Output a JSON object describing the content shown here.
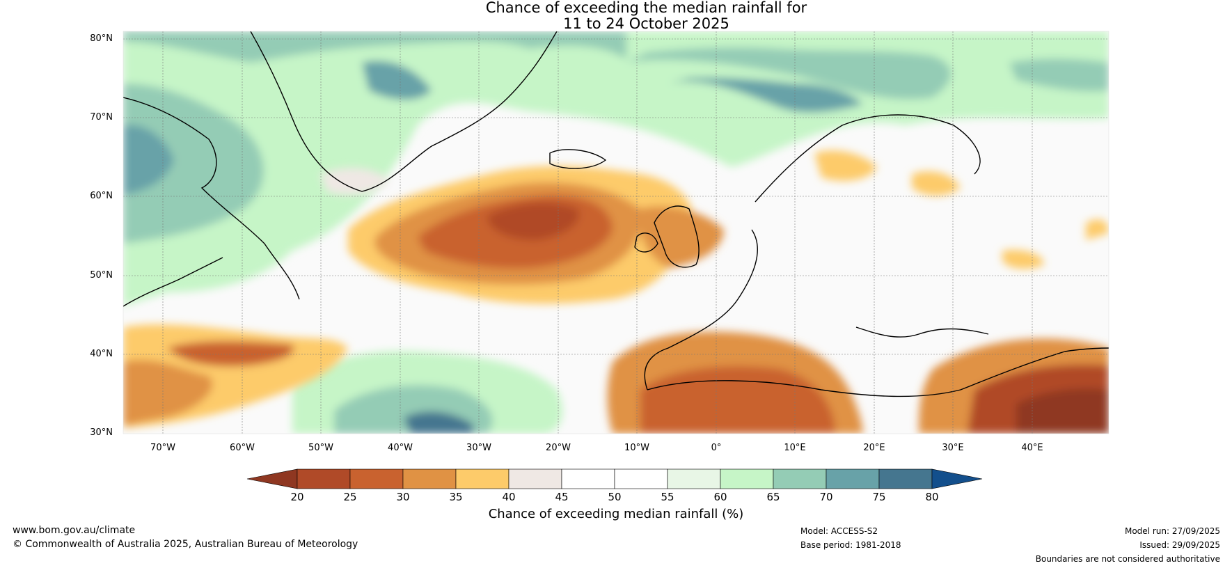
{
  "title": {
    "line1": "Chance of exceeding the median rainfall for",
    "line2": "11 to 24 October 2025"
  },
  "axes": {
    "lat_labels": [
      "80°N",
      "70°N",
      "60°N",
      "50°N",
      "40°N",
      "30°N"
    ],
    "lon_labels": [
      "70°W",
      "60°W",
      "50°W",
      "40°W",
      "30°W",
      "20°W",
      "10°W",
      "0°",
      "10°E",
      "20°E",
      "30°E",
      "40°E"
    ]
  },
  "colorbar": {
    "title": "Chance of exceeding median rainfall (%)",
    "ticks": [
      "20",
      "25",
      "30",
      "35",
      "40",
      "45",
      "50",
      "55",
      "60",
      "65",
      "70",
      "75",
      "80"
    ],
    "colors": [
      "#8f3721",
      "#b04a28",
      "#c9622f",
      "#e09244",
      "#fdcb6a",
      "#efe8e4",
      "#ffffff",
      "#ffffff",
      "#e8f6e6",
      "#c6f5c7",
      "#94ccb5",
      "#68a2a8",
      "#45768f",
      "#134f8c"
    ]
  },
  "footer": {
    "site": "www.bom.gov.au/climate",
    "copyright": "© Commonwealth of Australia 2025, Australian Bureau of Meteorology",
    "model": "Model: ACCESS-S2",
    "base_period": "Base period: 1981-2018",
    "model_run": "Model run: 27/09/2025",
    "issued": "Issued: 29/09/2025",
    "disclaimer": "Boundaries are not considered authoritative"
  }
}
